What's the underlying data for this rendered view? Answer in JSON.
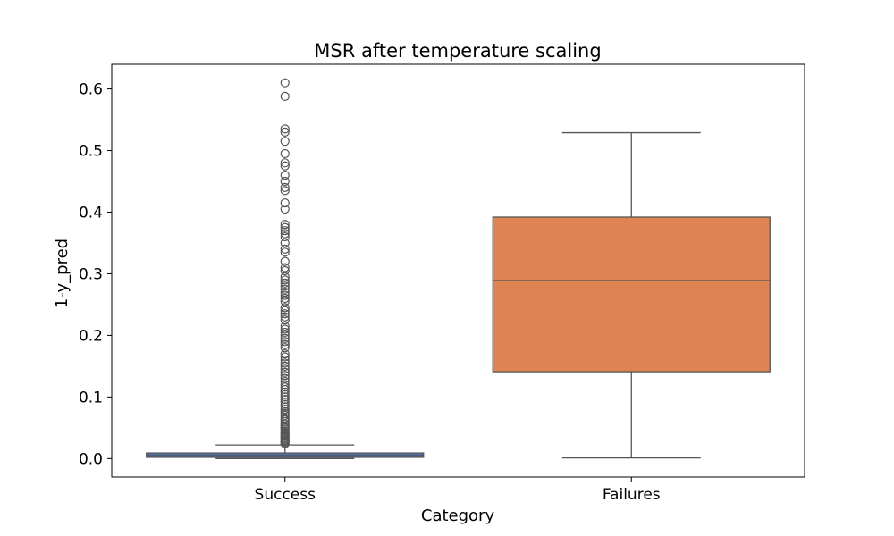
{
  "chart_data": {
    "type": "box",
    "title": "MSR after temperature scaling",
    "xlabel": "Category",
    "ylabel": "1-y_pred",
    "ylim": [
      -0.03,
      0.64
    ],
    "yticks": [
      0.0,
      0.1,
      0.2,
      0.3,
      0.4,
      0.5,
      0.6
    ],
    "ytick_labels": [
      "0.0",
      "0.1",
      "0.2",
      "0.3",
      "0.4",
      "0.5",
      "0.6"
    ],
    "grid": false,
    "categories": [
      "Success",
      "Failures"
    ],
    "boxes": [
      {
        "category": "Success",
        "color": "#4c72b0",
        "whisker_low": 0.0,
        "q1": 0.002,
        "median": 0.005,
        "q3": 0.009,
        "whisker_high": 0.022,
        "outliers": [
          0.024,
          0.026,
          0.028,
          0.03,
          0.032,
          0.034,
          0.036,
          0.038,
          0.04,
          0.042,
          0.045,
          0.048,
          0.05,
          0.053,
          0.056,
          0.06,
          0.063,
          0.066,
          0.07,
          0.073,
          0.076,
          0.08,
          0.084,
          0.088,
          0.092,
          0.096,
          0.1,
          0.104,
          0.108,
          0.112,
          0.116,
          0.12,
          0.125,
          0.13,
          0.135,
          0.14,
          0.145,
          0.15,
          0.155,
          0.16,
          0.165,
          0.17,
          0.18,
          0.185,
          0.19,
          0.195,
          0.2,
          0.205,
          0.21,
          0.215,
          0.225,
          0.23,
          0.235,
          0.24,
          0.245,
          0.255,
          0.26,
          0.265,
          0.27,
          0.275,
          0.28,
          0.285,
          0.29,
          0.295,
          0.305,
          0.31,
          0.32,
          0.335,
          0.34,
          0.35,
          0.36,
          0.365,
          0.37,
          0.375,
          0.38,
          0.405,
          0.415,
          0.435,
          0.44,
          0.45,
          0.46,
          0.475,
          0.48,
          0.495,
          0.515,
          0.53,
          0.535,
          0.588,
          0.61
        ]
      },
      {
        "category": "Failures",
        "color": "#dd8452",
        "whisker_low": 0.001,
        "q1": 0.141,
        "median": 0.289,
        "q3": 0.392,
        "whisker_high": 0.529,
        "outliers": []
      }
    ]
  }
}
